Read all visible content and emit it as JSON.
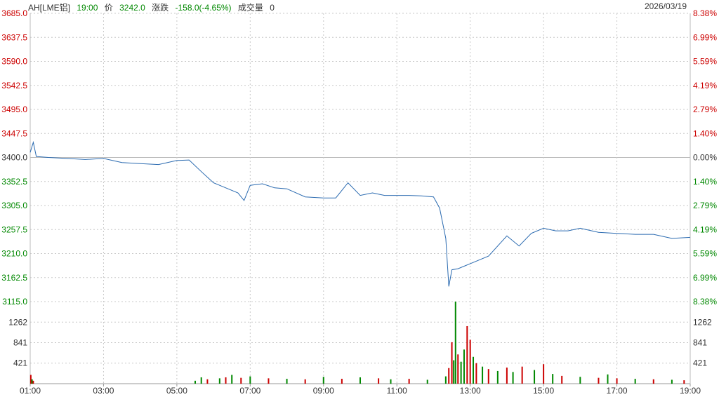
{
  "header": {
    "symbol": "AH[LME铝]",
    "time": "19:00",
    "price_label": "价",
    "price": "3242.0",
    "change_label": "涨跌",
    "change": "-158.0(-4.65%)",
    "volume_label": "成交量",
    "volume": "0",
    "date": "2026/03/19"
  },
  "colors": {
    "up": "#cc0000",
    "down": "#008800",
    "line": "#2a6ab0",
    "neutral": "#333333",
    "grid": "#c8c8c8"
  },
  "chart_data": {
    "type": "line",
    "prev_close": 3400.0,
    "price_ticks": [
      "3685.0",
      "3637.5",
      "3590.0",
      "3542.5",
      "3495.0",
      "3447.5",
      "3400.0",
      "3352.5",
      "3305.0",
      "3257.5",
      "3210.0",
      "3162.5",
      "3115.0"
    ],
    "pct_ticks": [
      "8.38%",
      "6.99%",
      "5.59%",
      "4.19%",
      "2.79%",
      "1.40%",
      "0.00%",
      "1.40%",
      "2.79%",
      "4.19%",
      "5.59%",
      "6.99%",
      "8.38%"
    ],
    "volume_ticks": [
      "1262",
      "841",
      "421"
    ],
    "x_ticks": [
      "01:00",
      "03:00",
      "05:00",
      "07:00",
      "09:00",
      "11:00",
      "13:00",
      "15:00",
      "17:00",
      "19:00"
    ],
    "ylim": [
      3115.0,
      3685.0
    ],
    "volume_max": 1683,
    "series": [
      {
        "x": [
          "01:00",
          "01:05",
          "01:10",
          "01:30",
          "02:00",
          "02:30",
          "03:00",
          "03:30",
          "04:00",
          "04:30",
          "05:00",
          "05:20",
          "05:40",
          "06:00",
          "06:20",
          "06:40",
          "06:50",
          "07:00",
          "07:20",
          "07:40",
          "08:00",
          "08:30",
          "09:00",
          "09:20",
          "09:40",
          "10:00",
          "10:20",
          "10:40",
          "11:00",
          "11:20",
          "11:40",
          "12:00",
          "12:10",
          "12:20",
          "12:25",
          "12:30",
          "12:40",
          "12:50",
          "13:00",
          "13:30",
          "14:00",
          "14:20",
          "14:40",
          "15:00",
          "15:20",
          "15:40",
          "16:00",
          "16:30",
          "17:00",
          "17:30",
          "18:00",
          "18:30",
          "19:00"
        ],
        "values": [
          3410,
          3430,
          3402,
          3400,
          3398,
          3396,
          3398,
          3390,
          3388,
          3386,
          3394,
          3395,
          3372,
          3350,
          3340,
          3330,
          3315,
          3345,
          3348,
          3340,
          3338,
          3322,
          3320,
          3320,
          3350,
          3325,
          3330,
          3325,
          3325,
          3325,
          3324,
          3322,
          3300,
          3240,
          3145,
          3178,
          3180,
          3185,
          3190,
          3205,
          3245,
          3225,
          3250,
          3260,
          3255,
          3255,
          3260,
          3252,
          3250,
          3248,
          3248,
          3240,
          3242
        ]
      }
    ],
    "volume_bars": [
      {
        "t": "01:01",
        "v": 180,
        "c": "up"
      },
      {
        "t": "01:03",
        "v": 90,
        "c": "down"
      },
      {
        "t": "01:05",
        "v": 60,
        "c": "up"
      },
      {
        "t": "05:30",
        "v": 60,
        "c": "down"
      },
      {
        "t": "05:40",
        "v": 130,
        "c": "down"
      },
      {
        "t": "05:50",
        "v": 90,
        "c": "up"
      },
      {
        "t": "06:10",
        "v": 110,
        "c": "down"
      },
      {
        "t": "06:20",
        "v": 130,
        "c": "up"
      },
      {
        "t": "06:30",
        "v": 180,
        "c": "down"
      },
      {
        "t": "06:45",
        "v": 120,
        "c": "up"
      },
      {
        "t": "07:00",
        "v": 150,
        "c": "down"
      },
      {
        "t": "07:30",
        "v": 110,
        "c": "up"
      },
      {
        "t": "08:00",
        "v": 100,
        "c": "down"
      },
      {
        "t": "08:30",
        "v": 90,
        "c": "up"
      },
      {
        "t": "09:00",
        "v": 140,
        "c": "down"
      },
      {
        "t": "09:30",
        "v": 100,
        "c": "up"
      },
      {
        "t": "10:00",
        "v": 130,
        "c": "down"
      },
      {
        "t": "10:30",
        "v": 110,
        "c": "up"
      },
      {
        "t": "10:50",
        "v": 90,
        "c": "down"
      },
      {
        "t": "11:20",
        "v": 100,
        "c": "up"
      },
      {
        "t": "11:50",
        "v": 80,
        "c": "down"
      },
      {
        "t": "12:20",
        "v": 150,
        "c": "down"
      },
      {
        "t": "12:25",
        "v": 320,
        "c": "up"
      },
      {
        "t": "12:30",
        "v": 850,
        "c": "up"
      },
      {
        "t": "12:33",
        "v": 480,
        "c": "down"
      },
      {
        "t": "12:36",
        "v": 1683,
        "c": "down"
      },
      {
        "t": "12:40",
        "v": 600,
        "c": "up"
      },
      {
        "t": "12:45",
        "v": 450,
        "c": "down"
      },
      {
        "t": "12:50",
        "v": 700,
        "c": "down"
      },
      {
        "t": "12:55",
        "v": 1180,
        "c": "up"
      },
      {
        "t": "13:00",
        "v": 900,
        "c": "up"
      },
      {
        "t": "13:05",
        "v": 550,
        "c": "down"
      },
      {
        "t": "13:10",
        "v": 420,
        "c": "up"
      },
      {
        "t": "13:20",
        "v": 350,
        "c": "down"
      },
      {
        "t": "13:30",
        "v": 300,
        "c": "up"
      },
      {
        "t": "13:45",
        "v": 260,
        "c": "down"
      },
      {
        "t": "14:00",
        "v": 330,
        "c": "up"
      },
      {
        "t": "14:10",
        "v": 240,
        "c": "down"
      },
      {
        "t": "14:25",
        "v": 350,
        "c": "up"
      },
      {
        "t": "14:45",
        "v": 280,
        "c": "down"
      },
      {
        "t": "15:00",
        "v": 400,
        "c": "up"
      },
      {
        "t": "15:15",
        "v": 200,
        "c": "down"
      },
      {
        "t": "15:30",
        "v": 160,
        "c": "up"
      },
      {
        "t": "16:00",
        "v": 140,
        "c": "down"
      },
      {
        "t": "16:30",
        "v": 120,
        "c": "up"
      },
      {
        "t": "16:45",
        "v": 190,
        "c": "down"
      },
      {
        "t": "17:00",
        "v": 110,
        "c": "up"
      },
      {
        "t": "17:30",
        "v": 100,
        "c": "down"
      },
      {
        "t": "18:00",
        "v": 90,
        "c": "up"
      },
      {
        "t": "18:30",
        "v": 80,
        "c": "down"
      },
      {
        "t": "18:50",
        "v": 70,
        "c": "up"
      }
    ]
  }
}
